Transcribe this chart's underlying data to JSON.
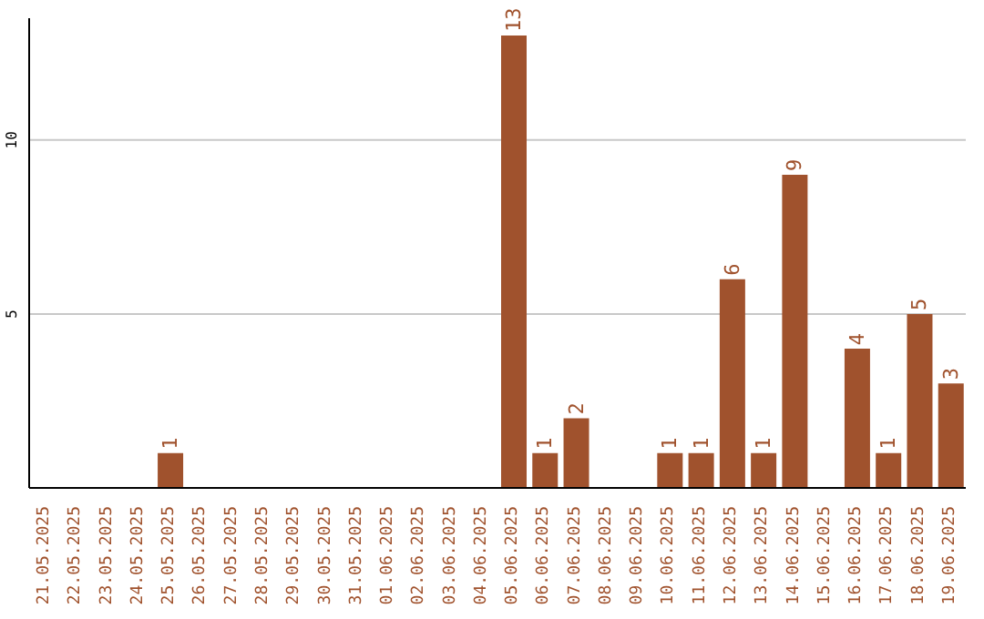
{
  "chart_data": {
    "type": "bar",
    "categories": [
      "21.05.2025",
      "22.05.2025",
      "23.05.2025",
      "24.05.2025",
      "25.05.2025",
      "26.05.2025",
      "27.05.2025",
      "28.05.2025",
      "29.05.2025",
      "30.05.2025",
      "31.05.2025",
      "01.06.2025",
      "02.06.2025",
      "03.06.2025",
      "04.06.2025",
      "05.06.2025",
      "06.06.2025",
      "07.06.2025",
      "08.06.2025",
      "09.06.2025",
      "10.06.2025",
      "11.06.2025",
      "12.06.2025",
      "13.06.2025",
      "14.06.2025",
      "15.06.2025",
      "16.06.2025",
      "17.06.2025",
      "18.06.2025",
      "19.06.2025"
    ],
    "values": [
      0,
      0,
      0,
      0,
      1,
      0,
      0,
      0,
      0,
      0,
      0,
      0,
      0,
      0,
      0,
      13,
      1,
      2,
      0,
      0,
      1,
      1,
      6,
      1,
      9,
      0,
      4,
      1,
      5,
      3
    ],
    "value_labels": [
      null,
      null,
      null,
      null,
      "1",
      null,
      null,
      null,
      null,
      null,
      null,
      null,
      null,
      null,
      null,
      "13",
      "1",
      "2",
      null,
      null,
      "1",
      "1",
      "6",
      "1",
      "9",
      null,
      "4",
      "1",
      "5",
      "3"
    ],
    "color": "#a0522d",
    "ylim": [
      0,
      13.5
    ],
    "yticks": [
      5,
      10
    ],
    "grid": "y"
  }
}
